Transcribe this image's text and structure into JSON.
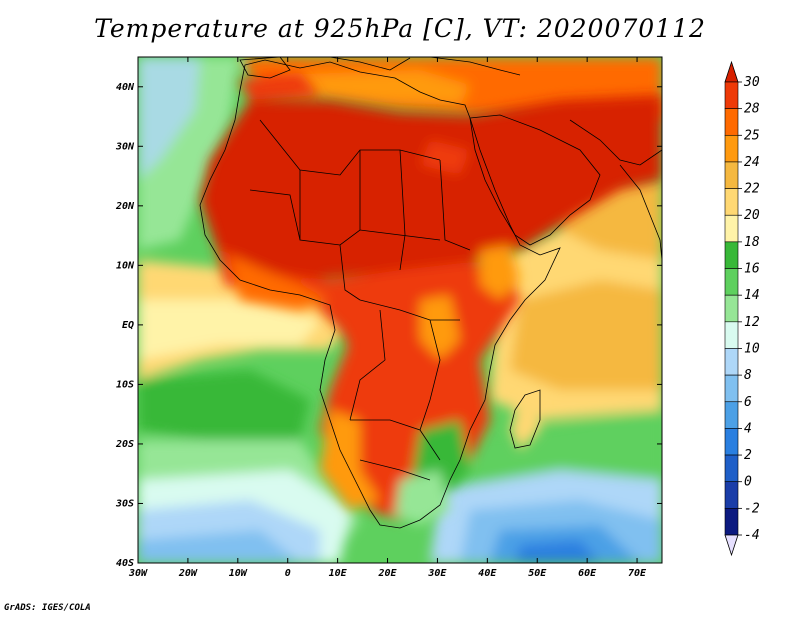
{
  "title": "Temperature at 925hPa [C], VT: 2020070112",
  "credit": "GrADS: IGES/COLA",
  "map": {
    "variable": "Temperature at 925hPa",
    "units": "C",
    "valid_time": "2020070112",
    "lon_range": [
      -30,
      75
    ],
    "lat_range": [
      -40,
      45
    ],
    "lon_ticks": [
      "30W",
      "20W",
      "10W",
      "0",
      "10E",
      "20E",
      "30E",
      "40E",
      "50E",
      "60E",
      "70E"
    ],
    "lat_ticks": [
      "40S",
      "30S",
      "20S",
      "10S",
      "EQ",
      "10N",
      "20N",
      "30N",
      "40N"
    ],
    "region": "Africa and surrounding oceans"
  },
  "colorbar": {
    "levels": [
      "30",
      "28",
      "25",
      "24",
      "22",
      "20",
      "18",
      "16",
      "14",
      "12",
      "10",
      "8",
      "6",
      "4",
      "2",
      "0",
      "-2",
      "-4"
    ],
    "colors": [
      "#d72000",
      "#ee3a08",
      "#ff6a00",
      "#ff9a10",
      "#f5b840",
      "#ffd873",
      "#fff3a8",
      "#38b838",
      "#5ed05e",
      "#96e696",
      "#d9fbf0",
      "#aed7f8",
      "#80c0f0",
      "#4ca0e6",
      "#2a7fe0",
      "#1f5fc8",
      "#1a3da8",
      "#0c1a80",
      "#e6e0ff"
    ]
  }
}
